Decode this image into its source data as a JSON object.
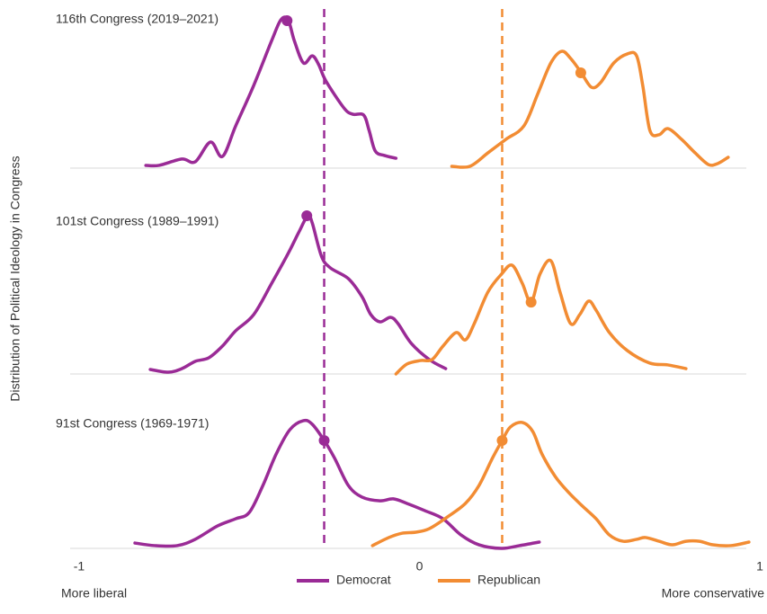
{
  "chart_data": {
    "type": "ridgeline",
    "ylabel": "Distribution of Political Ideology in Congress",
    "xlim": [
      -1,
      1
    ],
    "xticks": [
      -1,
      0,
      1
    ],
    "x_annotations": [
      "More liberal",
      "More conservative"
    ],
    "ylim": [
      0,
      1
    ],
    "series": [
      {
        "name": "Democrat",
        "color": "#9a2b96",
        "reference": -0.28
      },
      {
        "name": "Republican",
        "color": "#f28c33",
        "reference": 0.243
      }
    ],
    "panels": [
      {
        "title": "116th Congress (2019–2021)",
        "series": [
          {
            "x": [
              -0.804,
              -0.765,
              -0.698,
              -0.659,
              -0.614,
              -0.579,
              -0.54,
              -0.487,
              -0.434,
              -0.407,
              -0.386,
              -0.368,
              -0.341,
              -0.315,
              -0.296,
              -0.275,
              -0.222,
              -0.196,
              -0.164,
              -0.148,
              -0.13,
              -0.103,
              -0.069
            ],
            "values": [
              0.017,
              0.017,
              0.056,
              0.039,
              0.161,
              0.072,
              0.261,
              0.511,
              0.789,
              0.917,
              0.917,
              0.789,
              0.65,
              0.694,
              0.639,
              0.539,
              0.372,
              0.333,
              0.328,
              0.233,
              0.106,
              0.078,
              0.061
            ],
            "median": -0.389,
            "median_density": 0.911
          },
          {
            "x": [
              0.095,
              0.148,
              0.201,
              0.254,
              0.307,
              0.347,
              0.386,
              0.418,
              0.444,
              0.474,
              0.505,
              0.532,
              0.571,
              0.611,
              0.638,
              0.656,
              0.677,
              0.704,
              0.73,
              0.77,
              0.81,
              0.849,
              0.876,
              0.907
            ],
            "values": [
              0.011,
              0.011,
              0.094,
              0.178,
              0.261,
              0.456,
              0.65,
              0.722,
              0.678,
              0.594,
              0.5,
              0.528,
              0.65,
              0.706,
              0.694,
              0.511,
              0.233,
              0.206,
              0.244,
              0.178,
              0.094,
              0.022,
              0.028,
              0.067
            ],
            "median": 0.474,
            "median_density": 0.589
          }
        ]
      },
      {
        "title": "101st Congress (1989–1991)",
        "series": [
          {
            "x": [
              -0.791,
              -0.738,
              -0.698,
              -0.659,
              -0.619,
              -0.579,
              -0.54,
              -0.487,
              -0.434,
              -0.386,
              -0.354,
              -0.328,
              -0.315,
              -0.288,
              -0.262,
              -0.209,
              -0.169,
              -0.143,
              -0.116,
              -0.085,
              -0.063,
              -0.024,
              0.029,
              0.077
            ],
            "values": [
              0.028,
              0.011,
              0.033,
              0.078,
              0.1,
              0.172,
              0.267,
              0.367,
              0.561,
              0.744,
              0.878,
              0.978,
              0.933,
              0.728,
              0.656,
              0.589,
              0.478,
              0.367,
              0.322,
              0.35,
              0.311,
              0.189,
              0.089,
              0.033
            ],
            "median": -0.331,
            "median_density": 0.978
          },
          {
            "x": [
              -0.069,
              -0.037,
              0.003,
              0.037,
              0.069,
              0.108,
              0.135,
              0.161,
              0.201,
              0.241,
              0.272,
              0.302,
              0.328,
              0.354,
              0.386,
              0.413,
              0.444,
              0.471,
              0.497,
              0.519,
              0.558,
              0.611,
              0.677,
              0.73,
              0.783
            ],
            "values": [
              0,
              0.061,
              0.083,
              0.089,
              0.172,
              0.256,
              0.211,
              0.311,
              0.506,
              0.617,
              0.672,
              0.561,
              0.444,
              0.617,
              0.7,
              0.506,
              0.311,
              0.367,
              0.45,
              0.394,
              0.256,
              0.144,
              0.067,
              0.056,
              0.033
            ],
            "median": 0.328,
            "median_density": 0.444
          }
        ]
      },
      {
        "title": "91st Congress (1969-1971)",
        "series": [
          {
            "x": [
              -0.836,
              -0.778,
              -0.712,
              -0.659,
              -0.593,
              -0.54,
              -0.5,
              -0.46,
              -0.421,
              -0.381,
              -0.341,
              -0.315,
              -0.28,
              -0.249,
              -0.209,
              -0.169,
              -0.116,
              -0.077,
              -0.037,
              0.016,
              0.069,
              0.122,
              0.175,
              0.241,
              0.294,
              0.352
            ],
            "values": [
              0.033,
              0.017,
              0.017,
              0.056,
              0.139,
              0.183,
              0.222,
              0.389,
              0.583,
              0.733,
              0.789,
              0.767,
              0.667,
              0.556,
              0.389,
              0.317,
              0.294,
              0.306,
              0.278,
              0.233,
              0.183,
              0.083,
              0.022,
              0,
              0.017,
              0.039
            ],
            "median": -0.28,
            "median_density": 0.667
          },
          {
            "x": [
              -0.138,
              -0.09,
              -0.05,
              -0.011,
              0.029,
              0.082,
              0.135,
              0.175,
              0.214,
              0.243,
              0.267,
              0.302,
              0.333,
              0.36,
              0.399,
              0.439,
              0.479,
              0.519,
              0.558,
              0.598,
              0.638,
              0.664,
              0.704,
              0.743,
              0.783,
              0.823,
              0.862,
              0.915,
              0.968
            ],
            "values": [
              0.017,
              0.067,
              0.094,
              0.1,
              0.122,
              0.194,
              0.278,
              0.389,
              0.556,
              0.667,
              0.75,
              0.778,
              0.722,
              0.583,
              0.444,
              0.344,
              0.261,
              0.183,
              0.083,
              0.044,
              0.056,
              0.067,
              0.044,
              0.022,
              0.044,
              0.044,
              0.022,
              0.017,
              0.039
            ],
            "median": 0.243,
            "median_density": 0.667
          }
        ]
      }
    ]
  }
}
